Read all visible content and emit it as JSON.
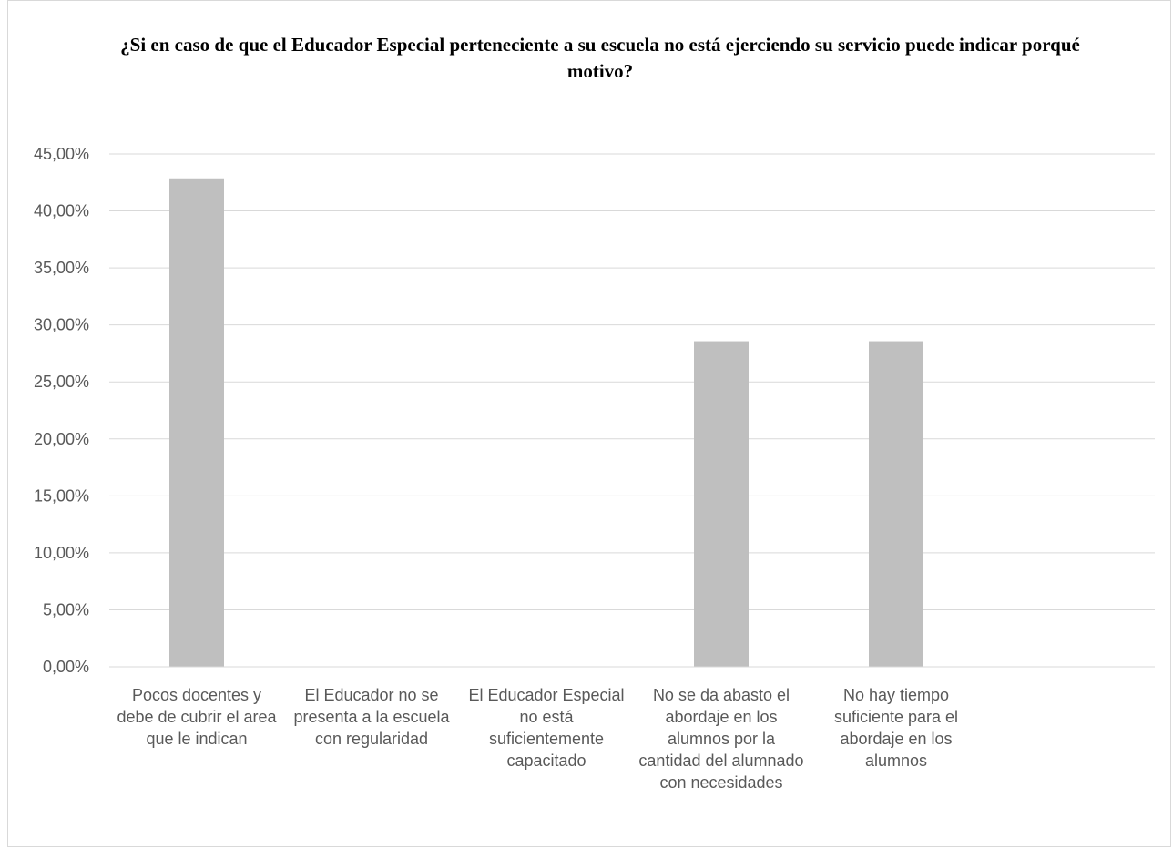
{
  "chart_data": {
    "type": "bar",
    "title": "¿Si en caso de que el Educador Especial perteneciente a su escuela no está ejerciendo su servicio puede indicar porqué motivo?",
    "categories": [
      "Pocos docentes y debe de cubrir el area que le indican",
      "El Educador no se presenta a la escuela con regularidad",
      "El Educador Especial no está suficientemente capacitado",
      "No se da abasto el abordaje en los alumnos por la cantidad del alumnado con necesidades",
      "No hay tiempo suficiente para el abordaje en los alumnos"
    ],
    "values": [
      42.86,
      0,
      0,
      28.57,
      28.57
    ],
    "ylim": [
      0,
      45
    ],
    "yticks": [
      0,
      5,
      10,
      15,
      20,
      25,
      30,
      35,
      40,
      45
    ],
    "ytick_labels": [
      "0,00%",
      "5,00%",
      "10,00%",
      "15,00%",
      "20,00%",
      "25,00%",
      "30,00%",
      "35,00%",
      "40,00%",
      "45,00%"
    ],
    "xlabel": "",
    "ylabel": "",
    "grid": true,
    "legend": "none",
    "bar_color": "#bfbfbf",
    "grid_color": "#d9d9d9"
  }
}
